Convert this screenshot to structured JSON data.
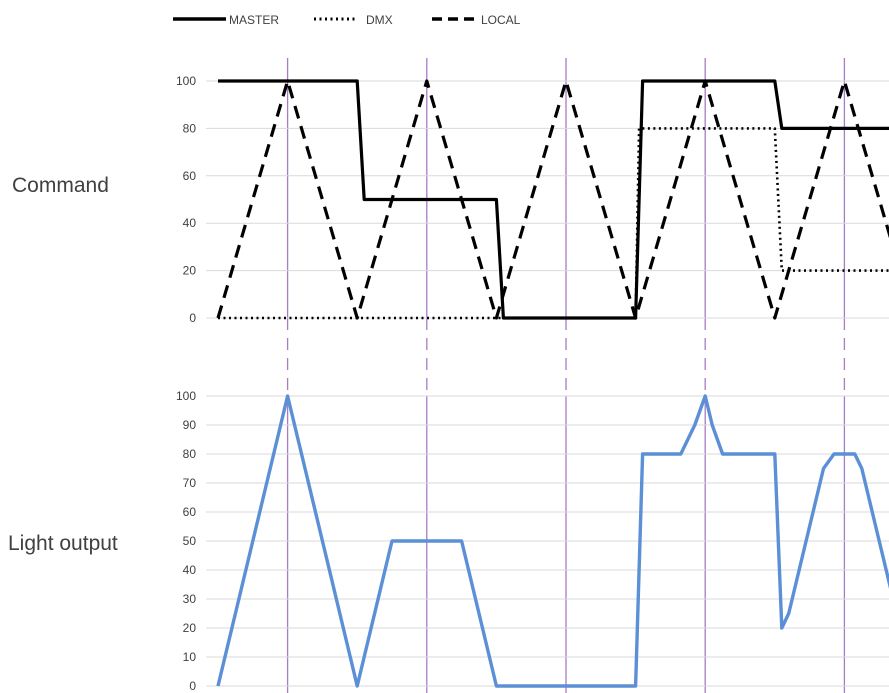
{
  "legend": {
    "master": "MASTER",
    "dmx": "DMX",
    "local": "LOCAL"
  },
  "labels": {
    "command": "Command",
    "light_output": "Light output"
  },
  "colors": {
    "command_lines": "#000000",
    "light_output": "#5b8fd6",
    "markers": "#a77bc5",
    "grid": "#d9d9d9",
    "text": "#404040"
  },
  "chart_data": [
    {
      "type": "line",
      "title": "",
      "ylim": [
        0,
        100
      ],
      "yticks": [
        "0",
        "20",
        "40",
        "60",
        "80",
        "100"
      ],
      "grid": true,
      "legend_position": "top-left",
      "markers_x": [
        1,
        3,
        5,
        7,
        9
      ],
      "series": [
        {
          "name": "MASTER",
          "style": "solid",
          "points": [
            [
              0,
              100
            ],
            [
              2,
              100
            ],
            [
              2.1,
              50
            ],
            [
              4,
              50
            ],
            [
              4.1,
              0
            ],
            [
              6,
              0
            ],
            [
              6.1,
              100
            ],
            [
              8,
              100
            ],
            [
              8.1,
              80
            ],
            [
              9.8,
              80
            ]
          ]
        },
        {
          "name": "DMX",
          "style": "dotted",
          "points": [
            [
              0,
              0
            ],
            [
              6,
              0
            ],
            [
              6.05,
              80
            ],
            [
              8,
              80
            ],
            [
              8.1,
              20
            ],
            [
              9.8,
              20
            ]
          ]
        },
        {
          "name": "LOCAL",
          "style": "dashed",
          "points": [
            [
              0,
              0
            ],
            [
              1,
              100
            ],
            [
              2,
              0
            ],
            [
              3,
              100
            ],
            [
              4,
              0
            ],
            [
              5,
              100
            ],
            [
              6,
              0
            ],
            [
              7,
              100
            ],
            [
              8,
              0
            ],
            [
              9,
              100
            ],
            [
              9.8,
              20
            ]
          ]
        }
      ]
    },
    {
      "type": "line",
      "title": "",
      "ylim": [
        0,
        100
      ],
      "yticks": [
        "0",
        "10",
        "20",
        "30",
        "40",
        "50",
        "60",
        "70",
        "80",
        "90",
        "100"
      ],
      "grid": true,
      "markers_x": [
        1,
        3,
        5,
        7,
        9
      ],
      "series": [
        {
          "points": [
            [
              0,
              0
            ],
            [
              0.5,
              50
            ],
            [
              1,
              100
            ],
            [
              1.6,
              40
            ],
            [
              2,
              0
            ],
            [
              2.5,
              50
            ],
            [
              3.5,
              50
            ],
            [
              4,
              0
            ],
            [
              6,
              0
            ],
            [
              6.1,
              80
            ],
            [
              6.65,
              80
            ],
            [
              6.85,
              90
            ],
            [
              7,
              100
            ],
            [
              7.1,
              90
            ],
            [
              7.25,
              80
            ],
            [
              8,
              80
            ],
            [
              8.1,
              20
            ],
            [
              8.2,
              25
            ],
            [
              8.7,
              75
            ],
            [
              8.85,
              80
            ],
            [
              9.15,
              80
            ],
            [
              9.25,
              75
            ],
            [
              9.8,
              20
            ]
          ]
        }
      ]
    }
  ]
}
